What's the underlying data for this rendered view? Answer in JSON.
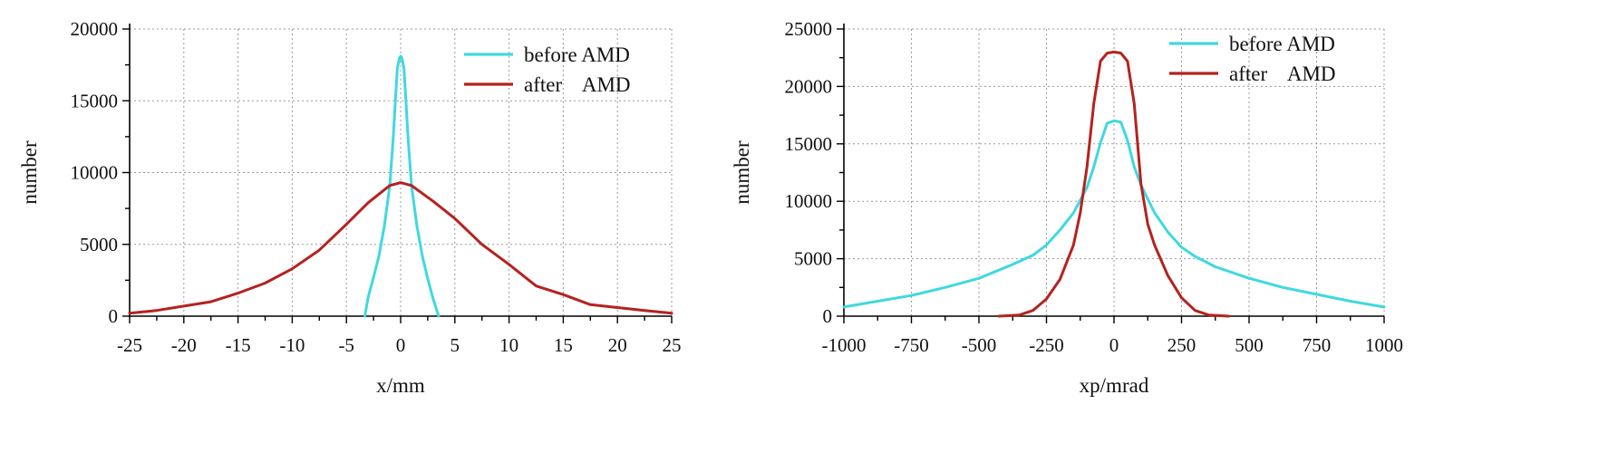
{
  "colors": {
    "before": "#40d8e0",
    "after": "#b5221f"
  },
  "chart_data": [
    {
      "type": "line",
      "xlabel": "x/mm",
      "ylabel": "number",
      "xlim": [
        -25,
        25
      ],
      "ylim": [
        0,
        20000
      ],
      "xticks": [
        -25,
        -20,
        -15,
        -10,
        -5,
        0,
        5,
        10,
        15,
        20,
        25
      ],
      "yticks": [
        0,
        5000,
        10000,
        15000,
        20000
      ],
      "xtick_labels": [
        "-25",
        "-20",
        "-15",
        "-10",
        "-5",
        "0",
        "5",
        "10",
        "15",
        "20",
        "25"
      ],
      "ytick_labels": [
        "0",
        "5000",
        "10000",
        "15000",
        "20000"
      ],
      "grid": true,
      "legend": "top-right",
      "series": [
        {
          "name": "before AMD",
          "color_key": "before",
          "x": [
            -3.3,
            -3.0,
            -2.5,
            -2.0,
            -1.5,
            -1.0,
            -0.7,
            -0.5,
            -0.3,
            -0.1,
            0.0,
            0.1,
            0.3,
            0.5,
            0.7,
            1.0,
            1.5,
            2.0,
            2.5,
            3.0,
            3.5
          ],
          "y": [
            0,
            1300,
            2700,
            4200,
            6300,
            9100,
            12200,
            14800,
            17300,
            18000,
            18100,
            18000,
            17300,
            14800,
            12200,
            9100,
            6300,
            4200,
            2600,
            1200,
            0
          ]
        },
        {
          "name": "after    AMD",
          "color_key": "after",
          "x": [
            -25,
            -22.5,
            -20,
            -17.5,
            -15,
            -12.5,
            -10,
            -7.5,
            -5,
            -3,
            -1,
            0,
            1,
            3,
            5,
            7.5,
            10,
            12.5,
            15,
            17.5,
            20,
            22.5,
            25
          ],
          "y": [
            200,
            400,
            700,
            1000,
            1600,
            2300,
            3300,
            4600,
            6400,
            7900,
            9100,
            9300,
            9100,
            8000,
            6800,
            5000,
            3600,
            2100,
            1500,
            800,
            600,
            400,
            200
          ]
        }
      ]
    },
    {
      "type": "line",
      "xlabel": "xp/mrad",
      "ylabel": "number",
      "xlim": [
        -1000,
        1000
      ],
      "ylim": [
        0,
        25000
      ],
      "xticks": [
        -1000,
        -750,
        -500,
        -250,
        0,
        250,
        500,
        750,
        1000
      ],
      "yticks": [
        0,
        5000,
        10000,
        15000,
        20000,
        25000
      ],
      "xtick_labels": [
        "-1000",
        "-750",
        "-500",
        "-250",
        "0",
        "250",
        "500",
        "750",
        "1000"
      ],
      "ytick_labels": [
        "0",
        "5000",
        "10000",
        "15000",
        "20000",
        "25000"
      ],
      "grid": true,
      "legend": "top-right",
      "series": [
        {
          "name": "before AMD",
          "color_key": "before",
          "x": [
            -1000,
            -875,
            -750,
            -625,
            -500,
            -375,
            -300,
            -250,
            -200,
            -150,
            -100,
            -75,
            -50,
            -25,
            0,
            25,
            50,
            75,
            100,
            150,
            200,
            250,
            300,
            375,
            500,
            625,
            750,
            875,
            1000
          ],
          "y": [
            800,
            1300,
            1800,
            2500,
            3300,
            4500,
            5300,
            6200,
            7500,
            9000,
            11200,
            13000,
            15100,
            16800,
            17000,
            16900,
            15300,
            13000,
            11400,
            9000,
            7300,
            6000,
            5200,
            4300,
            3300,
            2500,
            1900,
            1300,
            800
          ]
        },
        {
          "name": "after    AMD",
          "color_key": "after",
          "x": [
            -425,
            -350,
            -300,
            -250,
            -200,
            -150,
            -125,
            -100,
            -75,
            -50,
            -25,
            0,
            25,
            50,
            75,
            100,
            125,
            150,
            200,
            250,
            300,
            350,
            425
          ],
          "y": [
            0,
            100,
            500,
            1500,
            3200,
            6200,
            9000,
            13000,
            18500,
            22200,
            22900,
            23000,
            22900,
            22200,
            18500,
            11500,
            8000,
            6200,
            3500,
            1600,
            500,
            100,
            0
          ]
        }
      ]
    }
  ]
}
